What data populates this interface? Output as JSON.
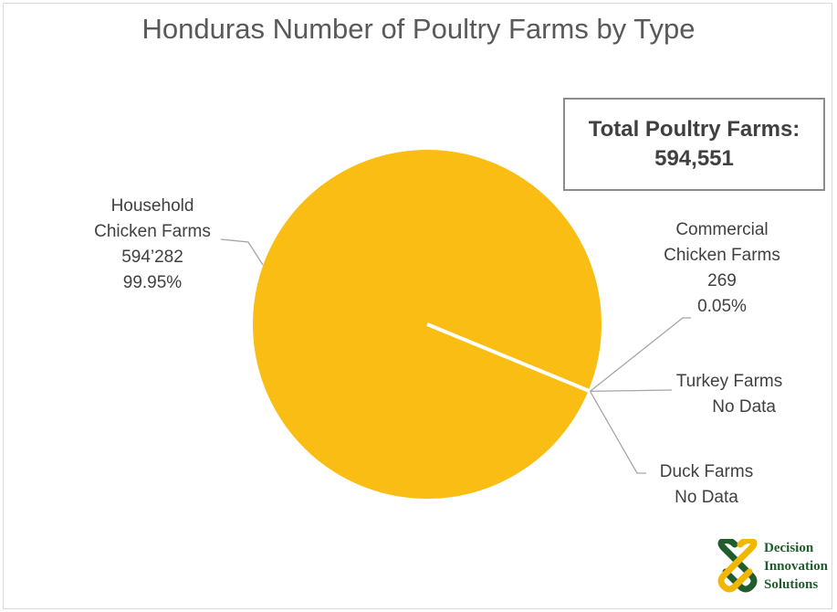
{
  "chart_data": {
    "type": "pie",
    "title": "Honduras Number of Poultry Farms by Type",
    "total_box": {
      "label": "Total Poultry Farms:",
      "value": "594,551"
    },
    "slices": [
      {
        "name_line1": "Household",
        "name_line2": "Chicken Farms",
        "value": 594282,
        "value_label": "594’282",
        "percent_label": "99.95%",
        "color": "#f9bd13"
      },
      {
        "name_line1": "Commercial",
        "name_line2": "Chicken Farms",
        "value": 269,
        "value_label": "269",
        "percent_label": "0.05%",
        "color": "#f2a007"
      },
      {
        "name_line1": "Turkey Farms",
        "value": null,
        "value_label": "No Data"
      },
      {
        "name_line1": "Duck Farms",
        "value": null,
        "value_label": "No Data"
      }
    ],
    "colors": {
      "pie": "#f9bd13",
      "leader": "#a6a6a6",
      "separator": "#ffffff"
    }
  },
  "logo": {
    "line1": "Decision",
    "line2": "Innovation",
    "line3": "Solutions",
    "color": "#1f5e2c"
  }
}
